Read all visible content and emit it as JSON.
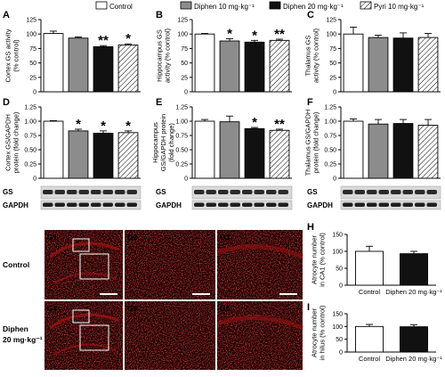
{
  "legend": {
    "items": [
      {
        "label": "Control",
        "swatch": "white"
      },
      {
        "label": "Diphen 10 mg·kg⁻¹",
        "swatch": "grey"
      },
      {
        "label": "Diphen 20 mg·kg⁻¹",
        "swatch": "black"
      },
      {
        "label": "Pyri 10 mg·kg⁻¹",
        "swatch": "hatch"
      }
    ]
  },
  "colors": {
    "control": "#ffffff",
    "diphen10": "#8c8c8c",
    "diphen20": "#111111",
    "pyri10": "#ffffff",
    "micrograph": "#a01010"
  },
  "chart_data": [
    {
      "panel": "A",
      "type": "bar",
      "ylabel": [
        "Cortex GS activity",
        "(% control)"
      ],
      "ylim": [
        0,
        125
      ],
      "yticks": [
        "0",
        "25",
        "50",
        "75",
        "100",
        "125"
      ],
      "categories": [
        "Control",
        "Diphen 10",
        "Diphen 20",
        "Pyri 10"
      ],
      "values": [
        101,
        93,
        78,
        81
      ],
      "errors": [
        4,
        2,
        2,
        2
      ],
      "sig": [
        "",
        "",
        "**",
        "*"
      ]
    },
    {
      "panel": "B",
      "type": "bar",
      "ylabel": [
        "Hippocampus GS",
        "activity (% control)"
      ],
      "ylim": [
        0,
        125
      ],
      "yticks": [
        "0",
        "25",
        "50",
        "75",
        "100",
        "125"
      ],
      "categories": [
        "Control",
        "Diphen 10",
        "Diphen 20",
        "Pyri 10"
      ],
      "values": [
        100,
        88,
        86,
        89
      ],
      "errors": [
        1,
        4,
        3,
        2
      ],
      "sig": [
        "",
        "*",
        "*",
        "**"
      ]
    },
    {
      "panel": "C",
      "type": "bar",
      "ylabel": [
        "Thalamus GS",
        "activity (% control)"
      ],
      "ylim": [
        0,
        125
      ],
      "yticks": [
        "0",
        "25",
        "50",
        "75",
        "100",
        "125"
      ],
      "categories": [
        "Control",
        "Diphen 10",
        "Diphen 20",
        "Pyri 10"
      ],
      "values": [
        100,
        94,
        93,
        94
      ],
      "errors": [
        12,
        4,
        9,
        7
      ],
      "sig": [
        "",
        "",
        "",
        ""
      ]
    },
    {
      "panel": "D",
      "type": "bar",
      "ylabel": [
        "Cortex GS/GAPDH",
        "protein (fold change)"
      ],
      "ylim": [
        0,
        1.25
      ],
      "yticks": [
        "0",
        "0.25",
        "0.50",
        "0.75",
        "1.00",
        "1.25"
      ],
      "categories": [
        "Control",
        "Diphen 10",
        "Diphen 20",
        "Pyri 10"
      ],
      "values": [
        1.0,
        0.83,
        0.79,
        0.8
      ],
      "errors": [
        0.01,
        0.03,
        0.04,
        0.03
      ],
      "sig": [
        "",
        "*",
        "*",
        "*"
      ]
    },
    {
      "panel": "E",
      "type": "bar",
      "ylabel": [
        "Hippocampus",
        "GS/GAPDH protein",
        "(fold change)"
      ],
      "ylim": [
        0,
        1.25
      ],
      "yticks": [
        "0",
        "0.25",
        "0.50",
        "0.75",
        "1.00",
        "1.25"
      ],
      "categories": [
        "Control",
        "Diphen 10",
        "Diphen 20",
        "Pyri 10"
      ],
      "values": [
        1.0,
        0.99,
        0.87,
        0.84
      ],
      "errors": [
        0.03,
        0.1,
        0.02,
        0.02
      ],
      "sig": [
        "",
        "",
        "*",
        "**"
      ]
    },
    {
      "panel": "F",
      "type": "bar",
      "ylabel": [
        "Thalamus GS/GAPDH",
        "protein (fold change)"
      ],
      "ylim": [
        0,
        1.25
      ],
      "yticks": [
        "0",
        "0.25",
        "0.50",
        "0.75",
        "1.00",
        "1.25"
      ],
      "categories": [
        "Control",
        "Diphen 10",
        "Diphen 20",
        "Pyri 10"
      ],
      "values": [
        1.0,
        0.95,
        0.96,
        0.93
      ],
      "errors": [
        0.04,
        0.08,
        0.07,
        0.1
      ],
      "sig": [
        "",
        "",
        "",
        ""
      ]
    },
    {
      "panel": "H",
      "type": "bar",
      "ylabel": [
        "Atrocyte number",
        "in CA1 (% control)"
      ],
      "ylim": [
        0,
        150
      ],
      "yticks": [
        "0",
        "50",
        "100",
        "150"
      ],
      "categories": [
        "Control",
        "Diphen 20 mg·kg⁻¹"
      ],
      "values": [
        100,
        93
      ],
      "errors": [
        15,
        7
      ],
      "sig": [
        "",
        ""
      ]
    },
    {
      "panel": "I",
      "type": "bar",
      "ylabel": [
        "Atrocyte number",
        "in hilus (% control)"
      ],
      "ylim": [
        0,
        150
      ],
      "yticks": [
        "0",
        "50",
        "100",
        "150"
      ],
      "categories": [
        "Control",
        "Diphen 20 mg·kg⁻¹"
      ],
      "values": [
        100,
        99
      ],
      "errors": [
        8,
        8
      ],
      "sig": [
        "",
        ""
      ]
    }
  ],
  "blots": {
    "labels": [
      "GS",
      "GAPDH"
    ]
  },
  "micrographs": {
    "panels": [
      "G1",
      "G2",
      "G3",
      "G4",
      "G5",
      "G6"
    ],
    "row_labels": [
      "Control",
      "Diphen",
      "20 mg·kg⁻¹"
    ]
  }
}
